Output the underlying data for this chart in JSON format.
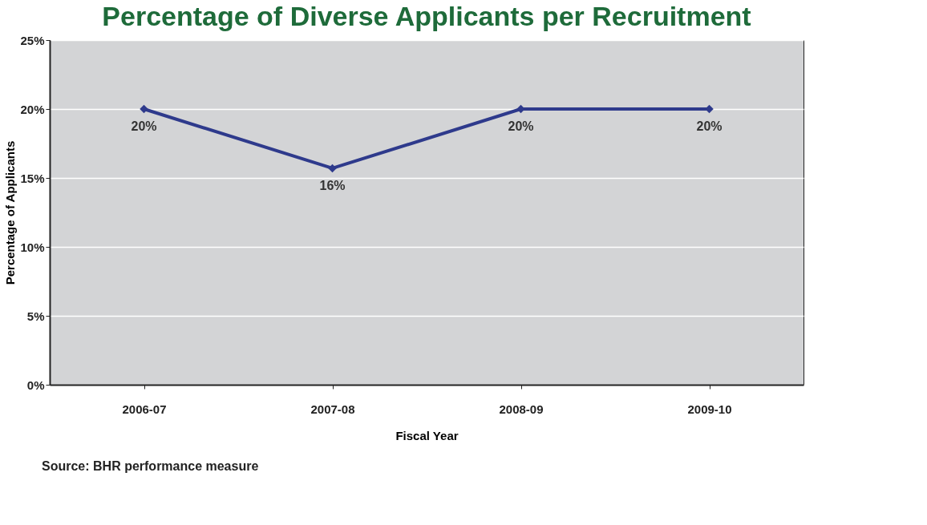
{
  "chart_data": {
    "type": "line",
    "title": "Percentage of Diverse Applicants per Recruitment",
    "xlabel": "Fiscal Year",
    "ylabel": "Percentage of Applicants",
    "categories": [
      "2006-07",
      "2007-08",
      "2008-09",
      "2009-10"
    ],
    "series": [
      {
        "color": "#2e3a8c",
        "values": [
          20,
          15.7,
          20,
          20
        ],
        "value_labels": [
          "20%",
          "16%",
          "20%",
          "20%"
        ]
      }
    ],
    "ylim": [
      0,
      25
    ],
    "yticks": [
      {
        "value": 0,
        "label": "0%"
      },
      {
        "value": 5,
        "label": "5%"
      },
      {
        "value": 10,
        "label": "10%"
      },
      {
        "value": 15,
        "label": "15%"
      },
      {
        "value": 20,
        "label": "20%"
      },
      {
        "value": 25,
        "label": "25%"
      }
    ],
    "grid": "y",
    "legend": false,
    "marker": "diamond",
    "line_style": "solid",
    "annotations": [
      "Source: BHR performance measure"
    ]
  }
}
